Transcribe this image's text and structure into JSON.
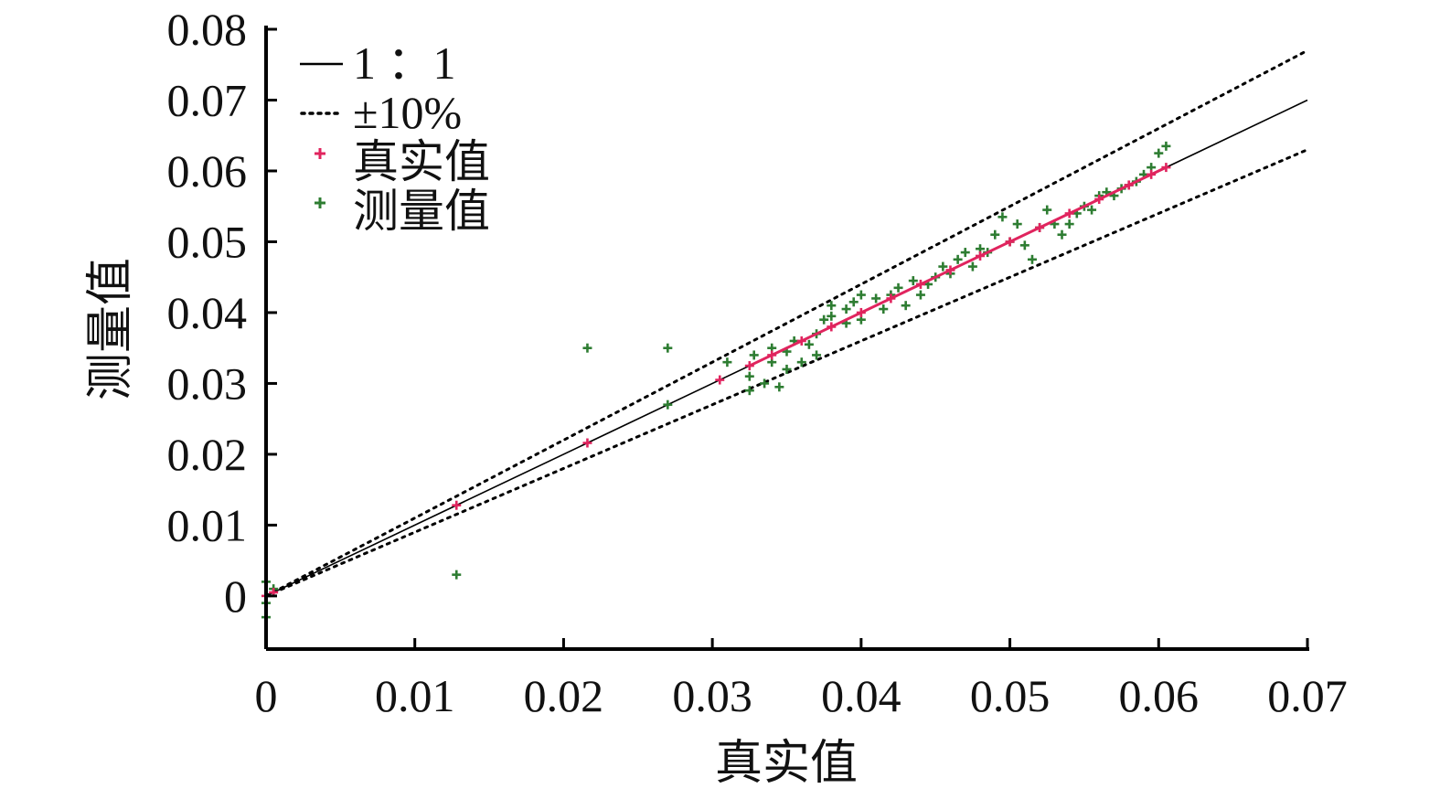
{
  "chart_data": {
    "type": "scatter",
    "title": "",
    "xlabel": "真实值",
    "ylabel": "测量值",
    "xlim": [
      0,
      0.07
    ],
    "ylim": [
      -0.0075,
      0.08
    ],
    "xticks": [
      "0",
      "0.01",
      "0.02",
      "0.03",
      "0.04",
      "0.05",
      "0.06",
      "0.07"
    ],
    "yticks": [
      "0",
      "0.01",
      "0.02",
      "0.03",
      "0.04",
      "0.05",
      "0.06",
      "0.07",
      "0.08"
    ],
    "grid": false,
    "legend_position": "top-left",
    "legend": [
      {
        "label": "1 ：1",
        "style": "solid-line"
      },
      {
        "label": "±10%",
        "style": "dotted-line"
      },
      {
        "label": "真实值",
        "style": "marker",
        "color": "#e0245e"
      },
      {
        "label": "测量值",
        "style": "marker",
        "color": "#2e7d32"
      }
    ],
    "lines": [
      {
        "name": "1 ：1",
        "slope": 1.0,
        "style": "solid",
        "color": "#000000"
      },
      {
        "name": "±10% upper",
        "slope": 1.1,
        "style": "dotted",
        "color": "#000000"
      },
      {
        "name": "±10% lower",
        "slope": 0.9,
        "style": "dotted",
        "color": "#000000"
      }
    ],
    "series": [
      {
        "name": "真实值",
        "color": "#e0245e",
        "points": [
          [
            0.0,
            0.0
          ],
          [
            0.0005,
            0.0005
          ],
          [
            0.0128,
            0.0128
          ],
          [
            0.0216,
            0.0216
          ],
          [
            0.0305,
            0.0305
          ],
          [
            0.0325,
            0.0325
          ],
          [
            0.034,
            0.034
          ],
          [
            0.036,
            0.036
          ],
          [
            0.038,
            0.038
          ],
          [
            0.04,
            0.04
          ],
          [
            0.042,
            0.042
          ],
          [
            0.044,
            0.044
          ],
          [
            0.046,
            0.046
          ],
          [
            0.048,
            0.048
          ],
          [
            0.05,
            0.05
          ],
          [
            0.052,
            0.052
          ],
          [
            0.054,
            0.054
          ],
          [
            0.056,
            0.056
          ],
          [
            0.058,
            0.058
          ],
          [
            0.0595,
            0.0595
          ],
          [
            0.0605,
            0.0605
          ]
        ]
      },
      {
        "name": "测量值",
        "color": "#2e7d32",
        "points": [
          [
            0.0,
            0.002
          ],
          [
            0.0,
            -0.001
          ],
          [
            0.0,
            -0.003
          ],
          [
            0.0005,
            0.001
          ],
          [
            0.0128,
            0.003
          ],
          [
            0.0216,
            0.035
          ],
          [
            0.027,
            0.035
          ],
          [
            0.027,
            0.027
          ],
          [
            0.031,
            0.033
          ],
          [
            0.0325,
            0.029
          ],
          [
            0.0325,
            0.031
          ],
          [
            0.0328,
            0.034
          ],
          [
            0.0335,
            0.03
          ],
          [
            0.034,
            0.033
          ],
          [
            0.034,
            0.035
          ],
          [
            0.0345,
            0.0295
          ],
          [
            0.035,
            0.032
          ],
          [
            0.035,
            0.0345
          ],
          [
            0.0355,
            0.036
          ],
          [
            0.036,
            0.033
          ],
          [
            0.0365,
            0.0355
          ],
          [
            0.037,
            0.034
          ],
          [
            0.037,
            0.037
          ],
          [
            0.0375,
            0.039
          ],
          [
            0.038,
            0.0395
          ],
          [
            0.038,
            0.041
          ],
          [
            0.039,
            0.0385
          ],
          [
            0.039,
            0.0405
          ],
          [
            0.0395,
            0.0415
          ],
          [
            0.04,
            0.039
          ],
          [
            0.04,
            0.0425
          ],
          [
            0.041,
            0.042
          ],
          [
            0.0415,
            0.0405
          ],
          [
            0.042,
            0.0425
          ],
          [
            0.0425,
            0.0435
          ],
          [
            0.043,
            0.041
          ],
          [
            0.0435,
            0.0445
          ],
          [
            0.044,
            0.0425
          ],
          [
            0.0445,
            0.044
          ],
          [
            0.045,
            0.045
          ],
          [
            0.0455,
            0.0465
          ],
          [
            0.046,
            0.0455
          ],
          [
            0.0465,
            0.0475
          ],
          [
            0.047,
            0.0485
          ],
          [
            0.0475,
            0.0465
          ],
          [
            0.048,
            0.049
          ],
          [
            0.0485,
            0.0485
          ],
          [
            0.049,
            0.051
          ],
          [
            0.0495,
            0.0535
          ],
          [
            0.05,
            0.05
          ],
          [
            0.0505,
            0.0525
          ],
          [
            0.051,
            0.0495
          ],
          [
            0.0515,
            0.0475
          ],
          [
            0.052,
            0.052
          ],
          [
            0.0525,
            0.0545
          ],
          [
            0.053,
            0.0525
          ],
          [
            0.0535,
            0.051
          ],
          [
            0.054,
            0.0525
          ],
          [
            0.0545,
            0.054
          ],
          [
            0.055,
            0.055
          ],
          [
            0.0555,
            0.0545
          ],
          [
            0.056,
            0.0565
          ],
          [
            0.0565,
            0.057
          ],
          [
            0.057,
            0.0565
          ],
          [
            0.0575,
            0.0575
          ],
          [
            0.058,
            0.058
          ],
          [
            0.0585,
            0.0585
          ],
          [
            0.059,
            0.0595
          ],
          [
            0.0595,
            0.0605
          ],
          [
            0.06,
            0.0625
          ],
          [
            0.0605,
            0.0635
          ]
        ]
      }
    ]
  }
}
